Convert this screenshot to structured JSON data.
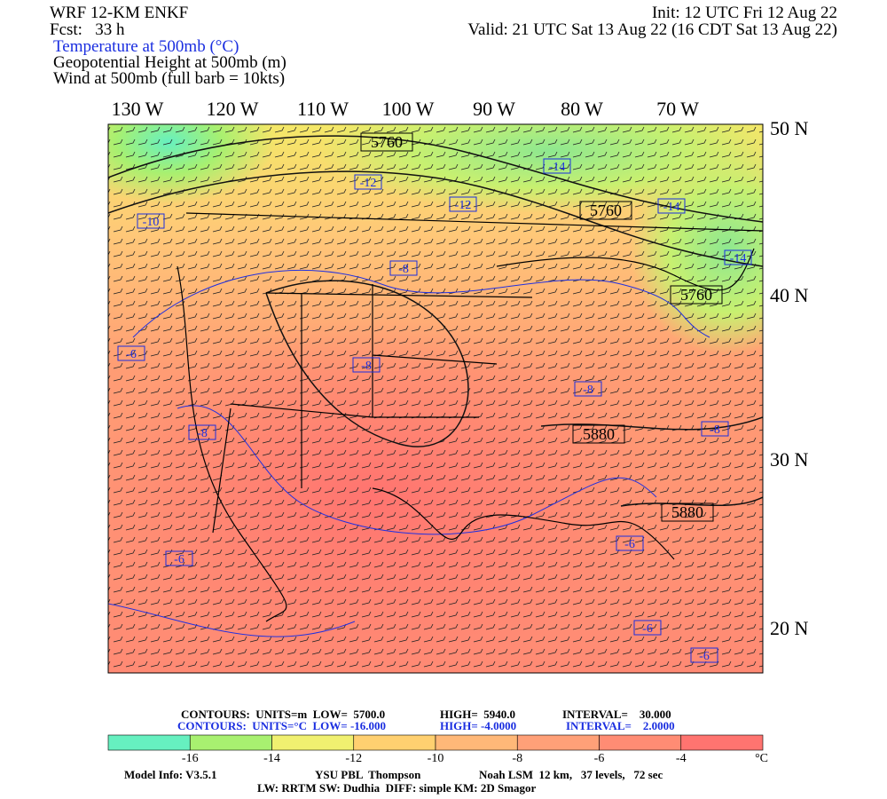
{
  "header": {
    "model": "WRF 12-KM ENKF",
    "forecast": "Fcst:   33 h",
    "init": "Init: 12 UTC Fri 12 Aug 22",
    "valid": "Valid: 21 UTC Sat 13 Aug 22 (16 CDT Sat 13 Aug 22)",
    "fields": [
      "Temperature at 500mb (°C)",
      "Geopotential Height at 500mb (m)",
      "Wind at 500mb (full barb = 10kts)"
    ]
  },
  "map": {
    "lon_labels": [
      "130 W",
      "120 W",
      "110 W",
      "100 W",
      "90 W",
      "80 W",
      "70 W"
    ],
    "lat_labels": [
      "50 N",
      "40 N",
      "30 N",
      "20 N"
    ],
    "height_labels": [
      "5760",
      "5760",
      "5760",
      "5880",
      "5880"
    ],
    "temp_labels": [
      "-14",
      "-14",
      "-14",
      "-12",
      "-12",
      "-10",
      "-8",
      "-8",
      "-8",
      "-8",
      "-8",
      "-6",
      "-6",
      "-6",
      "-6",
      "-6"
    ]
  },
  "colorbar": {
    "colors": [
      "#66f0c0",
      "#a8f070",
      "#f0f070",
      "#ffd070",
      "#ffb878",
      "#ffa078",
      "#ff8c74",
      "#ff7470"
    ],
    "tick_labels": [
      "-16",
      "-14",
      "-12",
      "-10",
      "-8",
      "-6",
      "-4"
    ],
    "unit": "°C"
  },
  "footer": {
    "contours_height": [
      "CONTOURS:  UNITS=m  LOW=  5700.0",
      "HIGH=  5940.0",
      "INTERVAL=    30.000"
    ],
    "contours_temp": [
      "CONTOURS:  UNITS=°C  LOW= -16.000",
      "HIGH= -4.0000",
      "INTERVAL=    2.0000"
    ],
    "model_info": [
      "Model Info: V3.5.1",
      "YSU PBL  Thompson",
      "Noah LSM  12 km,   37 levels,   72 sec"
    ],
    "physics": "LW: RRTM SW: Dudhia  DIFF: simple KM: 2D Smagor"
  }
}
